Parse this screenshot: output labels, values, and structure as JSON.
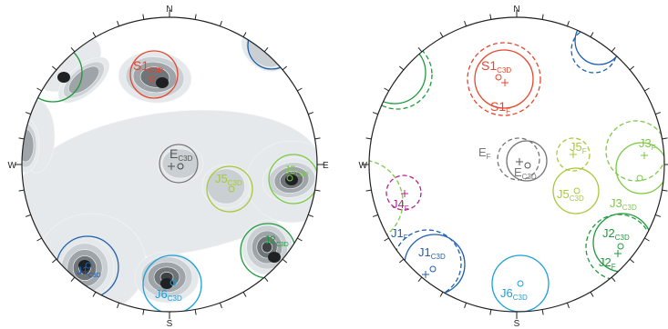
{
  "compass": {
    "north": "N",
    "south": "S",
    "east": "E",
    "west": "W"
  },
  "colors": {
    "S1": "#e8452c",
    "E": "#777777",
    "J1": "#1f5fae",
    "J2": "#1f9a3c",
    "J3": "#7ac943",
    "J4": "#b0268a",
    "J5": "#a8c83a",
    "J6": "#1a9fd8",
    "contour": [
      "#e6e9eb",
      "#c9cfd3",
      "#9ea4a8",
      "#6f7579",
      "#3e4245"
    ]
  },
  "left_net": {
    "labels": [
      {
        "set": "S1",
        "main": "S1",
        "sub": "C3D"
      },
      {
        "set": "E",
        "main": "E",
        "sub": "C3D"
      },
      {
        "set": "J5",
        "main": "J5",
        "sub": "C3D"
      },
      {
        "set": "J3",
        "main": "J3",
        "sub": "C3D"
      },
      {
        "set": "J2",
        "main": "J2",
        "sub": "C3D"
      },
      {
        "set": "J1",
        "main": "J1",
        "sub": "C3D"
      },
      {
        "set": "J6",
        "main": "J6",
        "sub": "C3D"
      }
    ]
  },
  "right_net": {
    "labels": [
      {
        "set": "S1",
        "main": "S1",
        "sub": "C3D"
      },
      {
        "set": "S1",
        "main": "S1",
        "sub": "F"
      },
      {
        "set": "E",
        "main": "E",
        "sub": "F"
      },
      {
        "set": "E",
        "main": "E",
        "sub": "C3D"
      },
      {
        "set": "J5",
        "main": "J5",
        "sub": "F"
      },
      {
        "set": "J5",
        "main": "J5",
        "sub": "C3D"
      },
      {
        "set": "J3",
        "main": "J3",
        "sub": "F"
      },
      {
        "set": "J3",
        "main": "J3",
        "sub": "C3D"
      },
      {
        "set": "J4",
        "main": "J4",
        "sub": "F"
      },
      {
        "set": "J1",
        "main": "J1",
        "sub": "F"
      },
      {
        "set": "J1",
        "main": "J1",
        "sub": "C3D"
      },
      {
        "set": "J2",
        "main": "J2",
        "sub": "C3D"
      },
      {
        "set": "J2",
        "main": "J2",
        "sub": "F"
      },
      {
        "set": "J6",
        "main": "J6",
        "sub": "C3D"
      }
    ]
  }
}
